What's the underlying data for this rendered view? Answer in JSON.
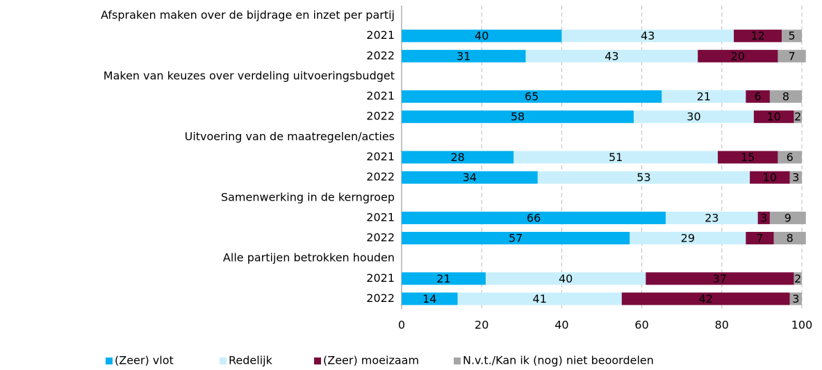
{
  "chart_data": {
    "type": "bar",
    "orientation": "horizontal",
    "stacked": true,
    "categories": [
      "Afspraken maken over de bijdrage en inzet per partij",
      "2021",
      "2022",
      "Maken van keuzes over verdeling uitvoeringsbudget",
      "2021",
      "2022",
      "Uitvoering van de maatregelen/acties",
      "2021",
      "2022",
      "Samenwerking in de kerngroep",
      "2021",
      "2022",
      "Alle partijen betrokken houden",
      "2021",
      "2022"
    ],
    "series": [
      {
        "name": "(Zeer) vlot",
        "color": "#00b0f0",
        "values": [
          null,
          40,
          31,
          null,
          65,
          58,
          null,
          28,
          34,
          null,
          66,
          57,
          null,
          21,
          14
        ]
      },
      {
        "name": "Redelijk",
        "color": "#c9effc",
        "values": [
          null,
          43,
          43,
          null,
          21,
          30,
          null,
          51,
          53,
          null,
          23,
          29,
          null,
          40,
          41
        ]
      },
      {
        "name": "(Zeer) moeizaam",
        "color": "#7a0a3c",
        "values": [
          null,
          12,
          20,
          null,
          6,
          10,
          null,
          15,
          10,
          null,
          3,
          7,
          null,
          37,
          42
        ]
      },
      {
        "name": "N.v.t./Kan ik (nog) niet beoordelen",
        "color": "#a6a6a6",
        "values": [
          null,
          5,
          7,
          null,
          8,
          2,
          null,
          6,
          3,
          null,
          9,
          8,
          null,
          2,
          3
        ]
      }
    ],
    "xlim": [
      0,
      100
    ],
    "xticks": [
      0,
      20,
      40,
      60,
      80,
      100
    ],
    "grid": true,
    "legend": "bottom"
  }
}
